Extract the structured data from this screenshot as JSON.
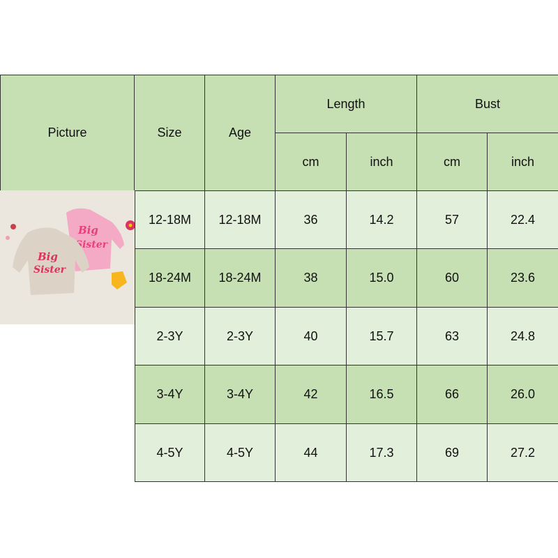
{
  "headers": {
    "picture": "Picture",
    "size": "Size",
    "age": "Age",
    "length": "Length",
    "bust": "Bust",
    "length_cm": "cm",
    "length_inch": "inch",
    "bust_cm": "cm",
    "bust_inch": "inch"
  },
  "picture": {
    "description_text": "Big Sister",
    "icon": "sweatshirt-photo"
  },
  "rows": [
    {
      "size": "12-18M",
      "age": "12-18M",
      "length_cm": "36",
      "length_inch": "14.2",
      "bust_cm": "57",
      "bust_inch": "22.4"
    },
    {
      "size": "18-24M",
      "age": "18-24M",
      "length_cm": "38",
      "length_inch": "15.0",
      "bust_cm": "60",
      "bust_inch": "23.6"
    },
    {
      "size": "2-3Y",
      "age": "2-3Y",
      "length_cm": "40",
      "length_inch": "15.7",
      "bust_cm": "63",
      "bust_inch": "24.8"
    },
    {
      "size": "3-4Y",
      "age": "3-4Y",
      "length_cm": "42",
      "length_inch": "16.5",
      "bust_cm": "66",
      "bust_inch": "26.0"
    },
    {
      "size": "4-5Y",
      "age": "4-5Y",
      "length_cm": "44",
      "length_inch": "17.3",
      "bust_cm": "69",
      "bust_inch": "27.2"
    }
  ],
  "colors": {
    "header": "#c6e0b4",
    "row_light": "#e2efda",
    "row_dark": "#c6e0b4"
  }
}
